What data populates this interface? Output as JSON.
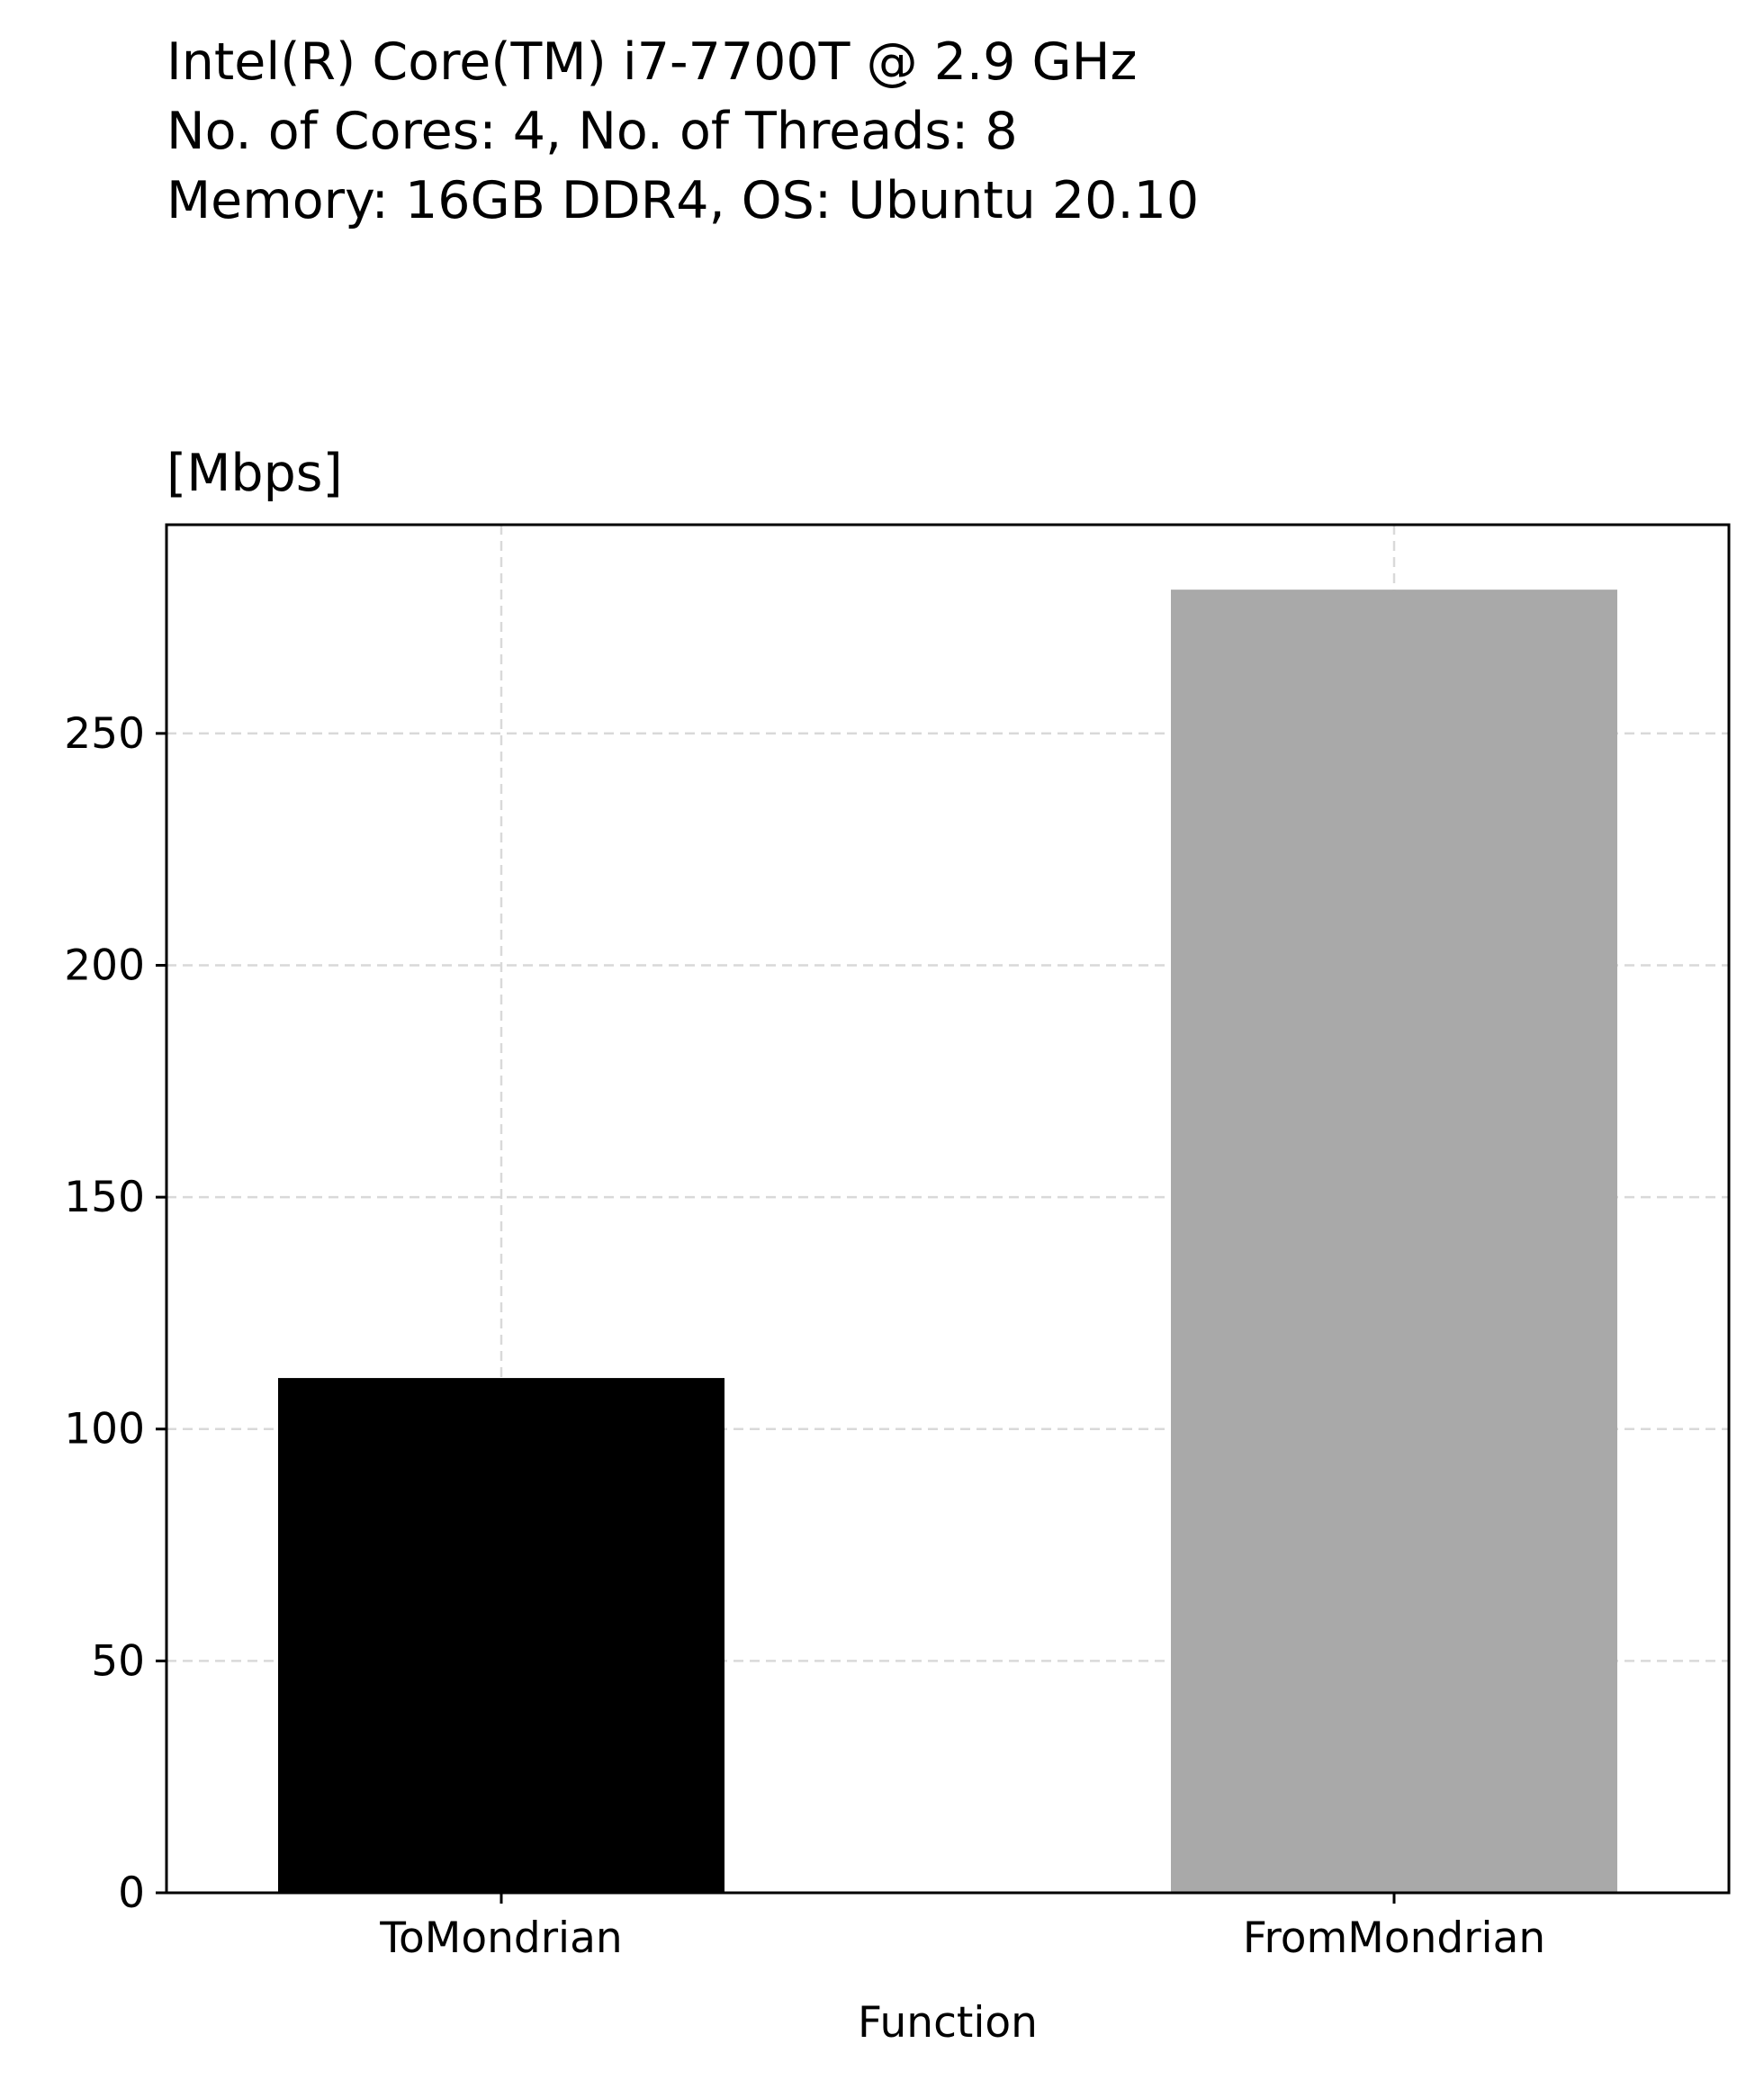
{
  "chart_data": {
    "type": "bar",
    "title_lines": [
      "Intel(R) Core(TM) i7-7700T @ 2.9 GHz",
      "No. of Cores: 4, No. of Threads: 8",
      "Memory: 16GB DDR4, OS: Ubuntu 20.10"
    ],
    "unit_label": "[Mbps]",
    "xlabel": "Function",
    "ylabel": "",
    "categories": [
      "ToMondrian",
      "FromMondrian"
    ],
    "values": [
      111,
      281
    ],
    "bar_colors": [
      "#000000",
      "#a9a9a9"
    ],
    "ylim": [
      0,
      295
    ],
    "yticks": [
      0,
      50,
      100,
      150,
      200,
      250
    ],
    "grid": true,
    "legend": "none"
  }
}
